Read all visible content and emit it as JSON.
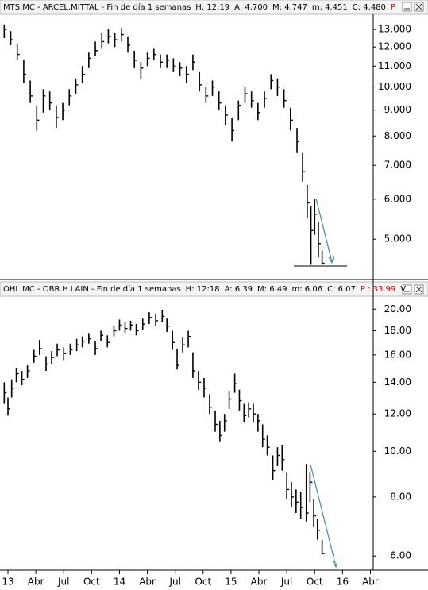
{
  "chart_data": [
    {
      "type": "ohlc",
      "title": "MTS.MC - ARCEL.MITTAL - Fin de día 1 semanas",
      "stats": [
        "H: 12:19",
        "A: 4.700",
        "M: 4.747",
        "m: 4.451",
        "C: 4.480"
      ],
      "flag": "P",
      "log_scale": true,
      "grid": false,
      "color": "#000000",
      "xlim": [
        -0.855,
        39.3
      ],
      "ylim": [
        4.16,
        13.93
      ],
      "yticks": [
        {
          "value": 13,
          "label": "13.000"
        },
        {
          "value": 12,
          "label": "12.000"
        },
        {
          "value": 11,
          "label": "11.000"
        },
        {
          "value": 10,
          "label": "10.000"
        },
        {
          "value": 9,
          "label": "9.000"
        },
        {
          "value": 8,
          "label": "8.000"
        },
        {
          "value": 7,
          "label": "7.000"
        },
        {
          "value": 6,
          "label": "6.000"
        },
        {
          "value": 5,
          "label": "5.000"
        }
      ],
      "x": [
        -0.4,
        0.3,
        1.0,
        1.7,
        2.4,
        3.1,
        3.8,
        4.5,
        5.2,
        5.9,
        6.6,
        7.3,
        8.0,
        8.7,
        9.4,
        10.1,
        10.8,
        11.5,
        12.2,
        12.9,
        13.6,
        14.3,
        15.0,
        15.7,
        16.4,
        17.1,
        17.8,
        18.5,
        19.2,
        19.9,
        20.6,
        21.3,
        22.0,
        22.7,
        23.4,
        24.1,
        24.8,
        25.5,
        26.2,
        26.9,
        27.6,
        28.3,
        29.0,
        29.7,
        30.4,
        31.1,
        31.7,
        32.2,
        32.6,
        33.0,
        33.4,
        33.8
      ],
      "high": [
        13.3,
        12.9,
        12.2,
        11.3,
        10.3,
        9.2,
        9.9,
        9.8,
        9.2,
        9.3,
        9.9,
        10.4,
        11.0,
        11.7,
        12.3,
        12.8,
        13.0,
        12.8,
        13.1,
        12.6,
        11.8,
        11.2,
        11.7,
        11.9,
        11.6,
        11.6,
        11.4,
        11.2,
        11.0,
        11.6,
        10.7,
        10.0,
        10.3,
        9.8,
        9.2,
        8.7,
        9.4,
        10.0,
        9.8,
        9.3,
        9.8,
        10.6,
        10.4,
        9.9,
        9.1,
        8.3,
        7.4,
        6.4,
        5.8,
        6.0,
        5.4,
        4.75
      ],
      "low": [
        12.5,
        12.1,
        11.3,
        10.2,
        9.3,
        8.2,
        8.9,
        9.0,
        8.3,
        8.6,
        9.2,
        9.7,
        10.2,
        10.9,
        11.5,
        11.9,
        12.2,
        12.0,
        12.3,
        11.7,
        10.9,
        10.4,
        11.0,
        11.3,
        10.9,
        10.9,
        10.7,
        10.5,
        10.2,
        10.8,
        9.8,
        9.3,
        9.6,
        9.0,
        8.4,
        7.8,
        8.6,
        9.3,
        9.1,
        8.6,
        9.1,
        9.9,
        9.6,
        9.1,
        8.2,
        7.4,
        6.5,
        5.5,
        4.45,
        5.1,
        4.6,
        4.45
      ],
      "close": [
        13.0,
        12.4,
        11.6,
        10.6,
        9.6,
        8.6,
        9.6,
        9.3,
        8.7,
        9.0,
        9.6,
        10.1,
        10.6,
        11.4,
        11.8,
        12.3,
        12.6,
        12.4,
        12.7,
        12.1,
        11.3,
        10.9,
        11.4,
        11.6,
        11.2,
        11.3,
        11.0,
        10.9,
        10.6,
        11.2,
        10.1,
        9.6,
        10.0,
        9.3,
        8.8,
        8.2,
        9.2,
        9.7,
        9.4,
        8.9,
        9.5,
        10.3,
        10.0,
        9.4,
        8.6,
        7.8,
        6.8,
        5.9,
        5.2,
        5.6,
        4.9,
        4.48
      ]
    },
    {
      "type": "ohlc",
      "title": "OHL.MC - OBR.H.LAIN - Fin de día 1 semanas",
      "stats": [
        "H: 12:18",
        "A: 6.39",
        "M: 6.49",
        "m: 6.06",
        "C: 6.07"
      ],
      "flag": "P : 33.99",
      "extra": "V",
      "log_scale": true,
      "grid": false,
      "color": "#000000",
      "xlim": [
        -0.855,
        39.3
      ],
      "ylim": [
        5.6,
        21.3
      ],
      "xticks": [
        {
          "value": 0,
          "label": "13"
        },
        {
          "value": 3,
          "label": "Abr"
        },
        {
          "value": 6,
          "label": "Jul"
        },
        {
          "value": 9,
          "label": "Oct"
        },
        {
          "value": 12,
          "label": "14"
        },
        {
          "value": 15,
          "label": "Abr"
        },
        {
          "value": 18,
          "label": "Jul"
        },
        {
          "value": 21,
          "label": "Oct"
        },
        {
          "value": 24,
          "label": "15"
        },
        {
          "value": 27,
          "label": "Abr"
        },
        {
          "value": 30,
          "label": "Jul"
        },
        {
          "value": 33,
          "label": "Oct"
        },
        {
          "value": 36,
          "label": "16"
        },
        {
          "value": 39,
          "label": "Abr"
        }
      ],
      "yticks": [
        {
          "value": 20,
          "label": "20.00"
        },
        {
          "value": 18,
          "label": "18.00"
        },
        {
          "value": 16,
          "label": "16.00"
        },
        {
          "value": 14,
          "label": "14.00"
        },
        {
          "value": 12,
          "label": "12.00"
        },
        {
          "value": 10,
          "label": "10.00"
        },
        {
          "value": 8,
          "label": "8.00"
        },
        {
          "value": 6,
          "label": "6.00"
        }
      ],
      "x": [
        -0.4,
        0.0,
        0.4,
        0.9,
        1.5,
        2.1,
        2.8,
        3.4,
        4.1,
        4.7,
        5.3,
        6.0,
        6.7,
        7.4,
        8.0,
        8.7,
        9.4,
        10.0,
        10.7,
        11.4,
        12.0,
        12.6,
        13.2,
        13.8,
        14.5,
        15.2,
        15.9,
        16.6,
        17.1,
        17.7,
        18.2,
        18.8,
        19.4,
        19.9,
        20.5,
        21.1,
        21.7,
        22.3,
        22.8,
        23.3,
        23.8,
        24.4,
        24.9,
        25.4,
        25.9,
        26.4,
        26.9,
        27.4,
        27.9,
        28.5,
        29.0,
        29.5,
        30.0,
        30.5,
        31.0,
        31.5,
        32.1,
        32.5,
        32.9,
        33.3,
        33.8
      ],
      "high": [
        14.0,
        13.0,
        14.2,
        15.0,
        14.8,
        15.2,
        16.4,
        17.2,
        15.9,
        16.3,
        16.9,
        16.6,
        16.9,
        17.3,
        17.5,
        17.8,
        17.1,
        18.0,
        17.6,
        18.4,
        19.0,
        18.8,
        18.9,
        18.6,
        19.1,
        19.7,
        19.5,
        19.9,
        19.1,
        18.0,
        16.5,
        17.4,
        18.0,
        16.2,
        14.8,
        14.3,
        13.2,
        12.2,
        11.6,
        12.0,
        13.4,
        14.6,
        13.5,
        12.6,
        12.7,
        12.6,
        12.0,
        11.4,
        10.8,
        9.8,
        10.2,
        10.3,
        9.0,
        8.6,
        8.3,
        8.2,
        9.4,
        9.0,
        7.9,
        7.2,
        6.49
      ],
      "low": [
        12.6,
        11.9,
        13.0,
        14.0,
        13.8,
        14.3,
        15.4,
        16.0,
        14.8,
        15.3,
        15.9,
        15.6,
        16.0,
        16.3,
        16.6,
        16.9,
        16.0,
        17.1,
        16.6,
        17.5,
        18.0,
        17.8,
        18.0,
        17.6,
        18.1,
        18.6,
        18.4,
        18.8,
        17.9,
        16.4,
        14.9,
        16.2,
        16.6,
        14.3,
        13.5,
        13.0,
        12.0,
        11.0,
        10.5,
        11.0,
        12.3,
        13.3,
        12.2,
        11.5,
        11.8,
        11.5,
        11.0,
        10.2,
        9.8,
        8.7,
        9.3,
        9.1,
        7.9,
        7.6,
        7.4,
        7.2,
        7.1,
        7.8,
        6.9,
        6.5,
        6.06
      ],
      "close": [
        13.3,
        12.3,
        13.6,
        14.6,
        14.2,
        14.8,
        15.9,
        16.5,
        15.3,
        15.8,
        16.4,
        16.1,
        16.4,
        16.8,
        17.1,
        17.3,
        16.5,
        17.6,
        17.0,
        18.0,
        18.5,
        18.2,
        18.5,
        18.0,
        18.6,
        19.2,
        18.9,
        19.3,
        18.4,
        17.0,
        15.2,
        16.8,
        17.5,
        14.8,
        14.0,
        13.6,
        12.4,
        11.4,
        10.8,
        11.6,
        12.9,
        13.9,
        12.8,
        11.9,
        12.3,
        12.0,
        11.6,
        10.6,
        10.2,
        9.1,
        9.8,
        9.6,
        8.3,
        8.0,
        7.8,
        7.6,
        7.4,
        8.6,
        7.3,
        6.8,
        6.07
      ]
    }
  ]
}
